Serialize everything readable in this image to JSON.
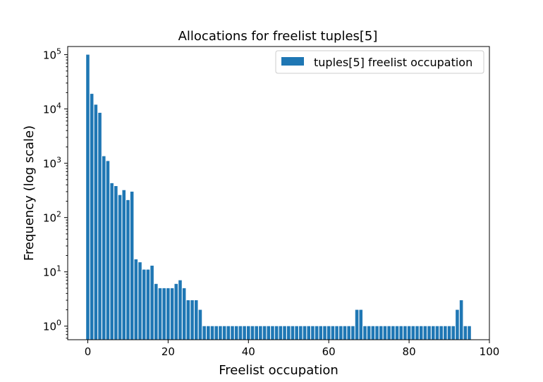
{
  "chart_data": {
    "type": "bar",
    "title": "Allocations for freelist tuples[5]",
    "xlabel": "Freelist occupation",
    "ylabel": "Frequency (log scale)",
    "yscale": "log",
    "xlim": [
      -5,
      100
    ],
    "ylim_log10": [
      -0.25,
      5.15
    ],
    "xticks": [
      0,
      20,
      40,
      60,
      80,
      100
    ],
    "xtick_labels": [
      "0",
      "20",
      "40",
      "60",
      "80",
      "100"
    ],
    "yticks": [
      1,
      10,
      100,
      1000,
      10000,
      100000
    ],
    "ytick_labels": [
      {
        "base": "10",
        "exp": "0"
      },
      {
        "base": "10",
        "exp": "1"
      },
      {
        "base": "10",
        "exp": "2"
      },
      {
        "base": "10",
        "exp": "3"
      },
      {
        "base": "10",
        "exp": "4"
      },
      {
        "base": "10",
        "exp": "5"
      }
    ],
    "legend_position": "top-right",
    "series": [
      {
        "name": "tuples[5] freelist occupation",
        "color": "#1f77b4",
        "x": [
          0,
          1,
          2,
          3,
          4,
          5,
          6,
          7,
          8,
          9,
          10,
          11,
          12,
          13,
          14,
          15,
          16,
          17,
          18,
          19,
          20,
          21,
          22,
          23,
          24,
          25,
          26,
          27,
          28,
          29,
          30,
          31,
          32,
          33,
          34,
          35,
          36,
          37,
          38,
          39,
          40,
          41,
          42,
          43,
          44,
          45,
          46,
          47,
          48,
          49,
          50,
          51,
          52,
          53,
          54,
          55,
          56,
          57,
          58,
          59,
          60,
          61,
          62,
          63,
          64,
          65,
          66,
          67,
          68,
          69,
          70,
          71,
          72,
          73,
          74,
          75,
          76,
          77,
          78,
          79,
          80,
          81,
          82,
          83,
          84,
          85,
          86,
          87,
          88,
          89,
          90,
          91,
          92,
          93,
          94,
          95
        ],
        "values": [
          100000,
          19000,
          12000,
          8500,
          1350,
          1100,
          430,
          380,
          260,
          320,
          210,
          300,
          17,
          15,
          11,
          11,
          13,
          6,
          5,
          5,
          5,
          5,
          6,
          7,
          5,
          3,
          3,
          3,
          2,
          1,
          1,
          1,
          1,
          1,
          1,
          1,
          1,
          1,
          1,
          1,
          1,
          1,
          1,
          1,
          1,
          1,
          1,
          1,
          1,
          1,
          1,
          1,
          1,
          1,
          1,
          1,
          1,
          1,
          1,
          1,
          1,
          1,
          1,
          1,
          1,
          1,
          1,
          2,
          2,
          1,
          1,
          1,
          1,
          1,
          1,
          1,
          1,
          1,
          1,
          1,
          1,
          1,
          1,
          1,
          1,
          1,
          1,
          1,
          1,
          1,
          1,
          1,
          2,
          3,
          1,
          1
        ]
      }
    ]
  }
}
